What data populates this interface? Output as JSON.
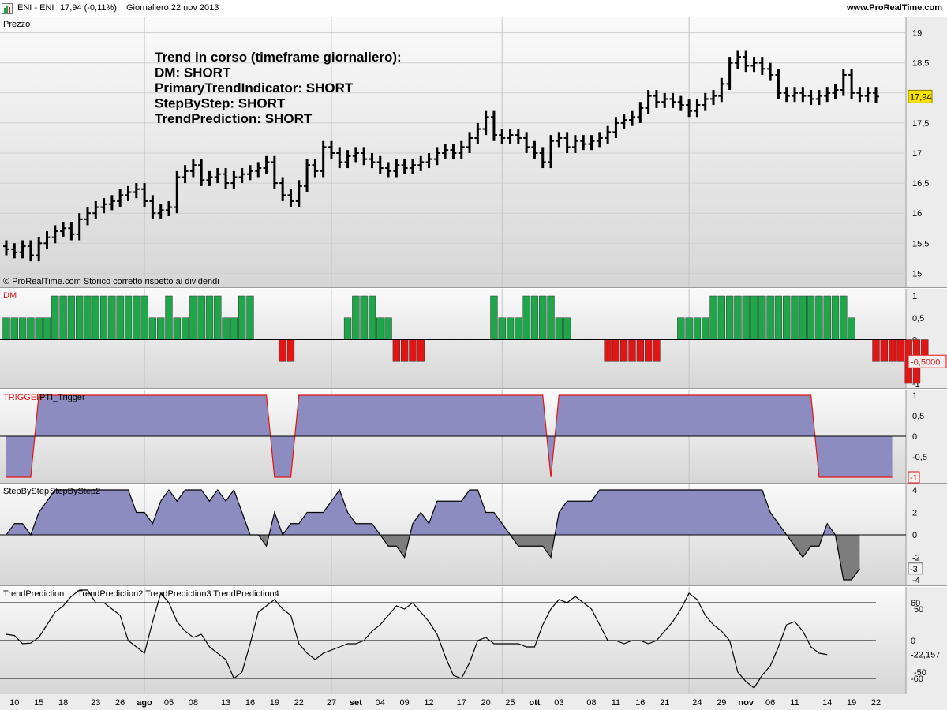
{
  "header": {
    "symbol": "ENI - ENI",
    "price_change": "17,94 (-0,11%)",
    "period": "Giornaliero  22 nov 2013",
    "site": "www.ProRealTime.com"
  },
  "colors": {
    "bull": "#1fa64b",
    "bear": "#e31414",
    "fill": "#8c8cc0",
    "fill_neg": "#7d7d7d",
    "price_tag": "#f5e200"
  },
  "chart_data": [
    {
      "type": "bar",
      "subtype": "ohlc",
      "name": "price",
      "title": "Prezzo",
      "footnote": "© ProRealTime.com  Storico corretto rispetto ai dividendi",
      "annotation": [
        "Trend in corso (timeframe giornaliero):",
        "DM: SHORT",
        "PrimaryTrendIndicator: SHORT",
        "StepByStep: SHORT",
        "TrendPrediction: SHORT"
      ],
      "last_price_label": "17,94",
      "ylim": [
        14.9,
        19.1
      ],
      "yticks": [
        15,
        15.5,
        16,
        16.5,
        17,
        17.5,
        18,
        18.5,
        19
      ],
      "ytick_labels": [
        "15",
        "15,5",
        "16",
        "16,5",
        "17",
        "17,5",
        "18",
        "18,5",
        "19"
      ],
      "x_labels": [
        "10",
        "15",
        "18",
        "23",
        "26",
        "ago",
        "05",
        "08",
        "13",
        "16",
        "19",
        "22",
        "27",
        "set",
        "04",
        "09",
        "12",
        "17",
        "20",
        "25",
        "ott",
        "03",
        "08",
        "11",
        "16",
        "21",
        "24",
        "29",
        "nov",
        "06",
        "11",
        "14",
        "19",
        "22"
      ],
      "close": [
        15.4,
        15.35,
        15.45,
        15.3,
        15.5,
        15.6,
        15.7,
        15.75,
        15.65,
        15.9,
        16.0,
        16.1,
        16.15,
        16.2,
        16.3,
        16.35,
        16.4,
        16.2,
        16.0,
        16.05,
        16.1,
        16.6,
        16.7,
        16.8,
        16.55,
        16.6,
        16.65,
        16.5,
        16.6,
        16.65,
        16.7,
        16.75,
        16.85,
        16.5,
        16.3,
        16.2,
        16.45,
        16.8,
        16.7,
        17.1,
        17.0,
        16.85,
        16.95,
        17.0,
        16.9,
        16.85,
        16.75,
        16.7,
        16.8,
        16.75,
        16.8,
        16.85,
        16.9,
        17.0,
        17.05,
        17.0,
        17.1,
        17.25,
        17.4,
        17.6,
        17.3,
        17.25,
        17.3,
        17.25,
        17.1,
        17.0,
        16.85,
        17.2,
        17.25,
        17.1,
        17.2,
        17.15,
        17.2,
        17.25,
        17.35,
        17.5,
        17.55,
        17.6,
        17.75,
        17.95,
        17.85,
        17.9,
        17.85,
        17.8,
        17.7,
        17.8,
        17.9,
        17.95,
        18.15,
        18.5,
        18.6,
        18.45,
        18.5,
        18.4,
        18.3,
        18.0,
        17.95,
        18.0,
        17.95,
        17.9,
        17.95,
        18.0,
        18.05,
        18.3,
        18.0,
        17.95,
        18.0,
        17.94
      ]
    },
    {
      "type": "bar",
      "name": "DM",
      "title": "DM",
      "yticks": [
        -1,
        -0.5,
        0,
        0.5,
        1
      ],
      "ytick_labels": [
        "-1",
        "-0,5",
        "0",
        "0,5",
        "1"
      ],
      "last_value_label": "-0,5000",
      "values": [
        0.5,
        0.5,
        0.5,
        0.5,
        0.5,
        0.5,
        1,
        1,
        1,
        1,
        1,
        1,
        1,
        1,
        1,
        1,
        1,
        1,
        0.5,
        0.5,
        1,
        0.5,
        0.5,
        1,
        1,
        1,
        1,
        0.5,
        0.5,
        1,
        1,
        0,
        0,
        0,
        -0.5,
        -0.5,
        0,
        0,
        0,
        0,
        0,
        0,
        0.5,
        1,
        1,
        1,
        0.5,
        0.5,
        -0.5,
        -0.5,
        -0.5,
        -0.5,
        0,
        0,
        0,
        0,
        0,
        0,
        0,
        0,
        1,
        0.5,
        0.5,
        0.5,
        1,
        1,
        1,
        1,
        0.5,
        0.5,
        0,
        0,
        0,
        0,
        -0.5,
        -0.5,
        -0.5,
        -0.5,
        -0.5,
        -0.5,
        -0.5,
        0,
        0,
        0.5,
        0.5,
        0.5,
        0.5,
        1,
        1,
        1,
        1,
        1,
        1,
        1,
        1,
        1,
        1,
        1,
        1,
        1,
        1,
        1,
        1,
        1,
        0.5,
        0,
        0,
        -0.5,
        -0.5,
        -0.5,
        -0.5,
        -1,
        -1,
        -0.5
      ]
    },
    {
      "type": "area",
      "name": "PTI_Trigger",
      "title": "TRIGGER",
      "subtitle": "PTI_Trigger",
      "yticks": [
        -1,
        -0.5,
        0,
        0.5,
        1
      ],
      "ytick_labels": [
        "-1",
        "-0,5",
        "0",
        "0,5",
        "1"
      ],
      "last_value_label": "-1",
      "values": [
        -1,
        -1,
        -1,
        -1,
        1,
        1,
        1,
        1,
        1,
        1,
        1,
        1,
        1,
        1,
        1,
        1,
        1,
        1,
        1,
        1,
        1,
        1,
        1,
        1,
        1,
        1,
        1,
        1,
        1,
        1,
        1,
        1,
        1,
        -1,
        -1,
        -1,
        1,
        1,
        1,
        1,
        1,
        1,
        1,
        1,
        1,
        1,
        1,
        1,
        1,
        1,
        1,
        1,
        1,
        1,
        1,
        1,
        1,
        1,
        1,
        1,
        1,
        1,
        1,
        1,
        1,
        1,
        1,
        -1,
        1,
        1,
        1,
        1,
        1,
        1,
        1,
        1,
        1,
        1,
        1,
        1,
        1,
        1,
        1,
        1,
        1,
        1,
        1,
        1,
        1,
        1,
        1,
        1,
        1,
        1,
        1,
        1,
        1,
        1,
        1,
        1,
        -1,
        -1,
        -1,
        -1,
        -1,
        -1,
        -1,
        -1,
        -1,
        -1
      ]
    },
    {
      "type": "area",
      "name": "StepByStep",
      "title": "StepByStep",
      "subtitle": "StepByStep2",
      "yticks": [
        -4,
        -2,
        0,
        2,
        4
      ],
      "ytick_labels": [
        "-4",
        "-2",
        "0",
        "2",
        "4"
      ],
      "last_value_label": "-3",
      "values": [
        0,
        1,
        1,
        0,
        2,
        3,
        4,
        4,
        4,
        4,
        4,
        4,
        4,
        4,
        4,
        4,
        2,
        2,
        1,
        3,
        4,
        3,
        4,
        4,
        4,
        3,
        4,
        3,
        4,
        2,
        0,
        0,
        -1,
        2,
        0,
        1,
        1,
        2,
        2,
        2,
        3,
        4,
        2,
        1,
        1,
        1,
        0,
        -1,
        -1,
        -2,
        1,
        2,
        1,
        3,
        3,
        3,
        3,
        4,
        4,
        2,
        2,
        1,
        0,
        -1,
        -1,
        -1,
        -1,
        -2,
        2,
        3,
        3,
        3,
        3,
        4,
        4,
        4,
        4,
        4,
        4,
        4,
        4,
        4,
        4,
        4,
        4,
        4,
        4,
        4,
        4,
        4,
        4,
        4,
        4,
        4,
        2,
        1,
        0,
        -1,
        -2,
        -1,
        -1,
        1,
        0,
        -4,
        -4,
        -3
      ]
    },
    {
      "type": "line",
      "name": "TrendPrediction",
      "title": "TrendPrediction",
      "subtitle": "TrendPrediction2 TrendPrediction3 TrendPrediction4",
      "ylim": [
        -85,
        85
      ],
      "yticks": [
        -60,
        -50,
        0,
        50,
        60
      ],
      "ytick_labels": [
        "-60",
        "-50",
        "0",
        "50",
        "60"
      ],
      "reference_lines": [
        -60,
        0,
        60
      ],
      "last_value_label": "-22,157",
      "values": [
        10,
        8,
        -5,
        -4,
        5,
        25,
        45,
        55,
        70,
        80,
        80,
        60,
        60,
        50,
        40,
        0,
        -10,
        -20,
        30,
        75,
        60,
        30,
        15,
        5,
        10,
        -10,
        -20,
        -30,
        -60,
        -50,
        -5,
        45,
        55,
        65,
        50,
        40,
        -5,
        -20,
        -30,
        -20,
        -15,
        -10,
        -5,
        -5,
        0,
        15,
        25,
        40,
        55,
        50,
        60,
        45,
        30,
        10,
        -25,
        -55,
        -60,
        -35,
        0,
        5,
        -5,
        -5,
        -5,
        -5,
        -10,
        -10,
        25,
        50,
        65,
        60,
        70,
        60,
        50,
        25,
        0,
        0,
        -5,
        0,
        0,
        -5,
        0,
        15,
        30,
        50,
        75,
        65,
        40,
        25,
        15,
        0,
        -50,
        -65,
        -75,
        -55,
        -40,
        -10,
        25,
        30,
        15,
        -10,
        -20,
        -22.157
      ]
    }
  ]
}
